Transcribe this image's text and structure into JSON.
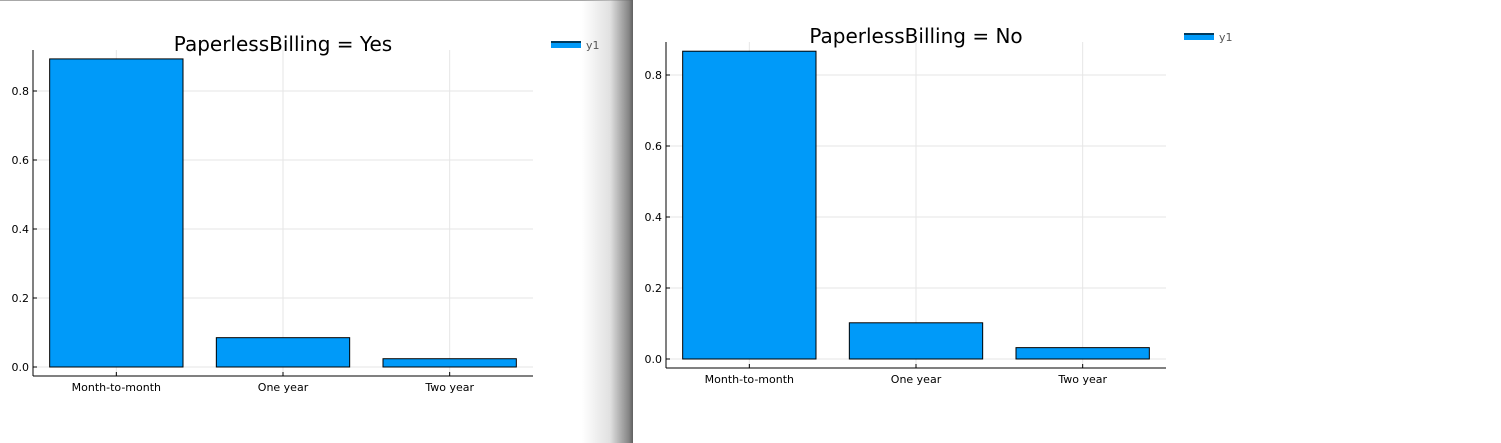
{
  "chart_data": [
    {
      "type": "bar",
      "title": "PaperlessBilling = Yes",
      "categories": [
        "Month-to-month",
        "One year",
        "Two year"
      ],
      "series": [
        {
          "name": "y1",
          "values": [
            0.893,
            0.085,
            0.024
          ]
        }
      ],
      "yticks": [
        "0.0",
        "0.2",
        "0.4",
        "0.6",
        "0.8"
      ],
      "ylim": [
        -0.025,
        0.925
      ],
      "grid": true,
      "legend": "top-right",
      "color": "#009af9"
    },
    {
      "type": "bar",
      "title": "PaperlessBilling = No",
      "categories": [
        "Month-to-month",
        "One year",
        "Two year"
      ],
      "series": [
        {
          "name": "y1",
          "values": [
            0.867,
            0.102,
            0.032
          ]
        }
      ],
      "yticks": [
        "0.0",
        "0.2",
        "0.4",
        "0.6",
        "0.8"
      ],
      "ylim": [
        -0.025,
        0.895
      ],
      "grid": true,
      "legend": "top-right",
      "color": "#009af9"
    }
  ]
}
